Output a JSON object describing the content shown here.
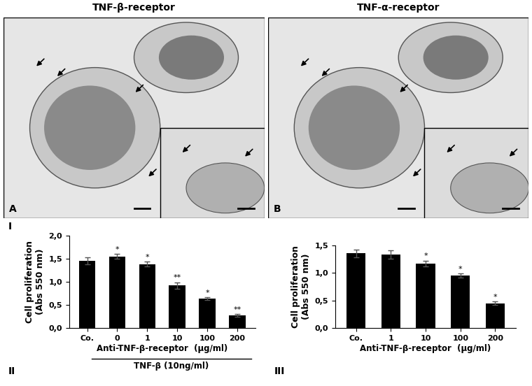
{
  "panels": [
    {
      "title": "TNF-β-receptor",
      "label": "A"
    },
    {
      "title": "TNF-α-receptor",
      "label": "B"
    }
  ],
  "row_label": "I",
  "chart_data": [
    {
      "type": "bar",
      "panel_label": "II",
      "categories": [
        "Co.",
        "0",
        "1",
        "10",
        "100",
        "200"
      ],
      "values": [
        1.45,
        1.55,
        1.38,
        0.92,
        0.63,
        0.27
      ],
      "error": [
        0.08,
        0.05,
        0.05,
        0.07,
        0.03,
        0.03
      ],
      "significance": [
        null,
        "*",
        "*",
        "**",
        "*",
        "**"
      ],
      "color": "#000000",
      "ylabel": "Cell proliferation\n(Abs 550 nm)",
      "xlabel": "Anti-TNF-β-receptor  (µg/ml)",
      "xlabel2": "TNF-β (10ng/ml)",
      "ylim": [
        0,
        2.0
      ],
      "yticks": [
        {
          "value": 0,
          "label": "0,0"
        },
        {
          "value": 0.5,
          "label": "0,5"
        },
        {
          "value": 1.0,
          "label": "1,0"
        },
        {
          "value": 1.5,
          "label": "1,5"
        },
        {
          "value": 2.0,
          "label": "2,0"
        }
      ]
    },
    {
      "type": "bar",
      "panel_label": "III",
      "categories": [
        "Co.",
        "1",
        "10",
        "100",
        "200"
      ],
      "values": [
        1.35,
        1.33,
        1.17,
        0.95,
        0.45
      ],
      "error": [
        0.07,
        0.07,
        0.05,
        0.04,
        0.03
      ],
      "significance": [
        null,
        null,
        "*",
        "*",
        "*"
      ],
      "color": "#000000",
      "ylabel": "Cell proliferation\n(Abs 550 nm)",
      "xlabel": "Anti-TNF-β-receptor  (µg/ml)",
      "ylim": [
        0,
        1.5
      ],
      "yticks": [
        {
          "value": 0,
          "label": "0,0"
        },
        {
          "value": 0.5,
          "label": "0,5"
        },
        {
          "value": 1.0,
          "label": "1,0"
        },
        {
          "value": 1.5,
          "label": "1,5"
        }
      ]
    }
  ]
}
